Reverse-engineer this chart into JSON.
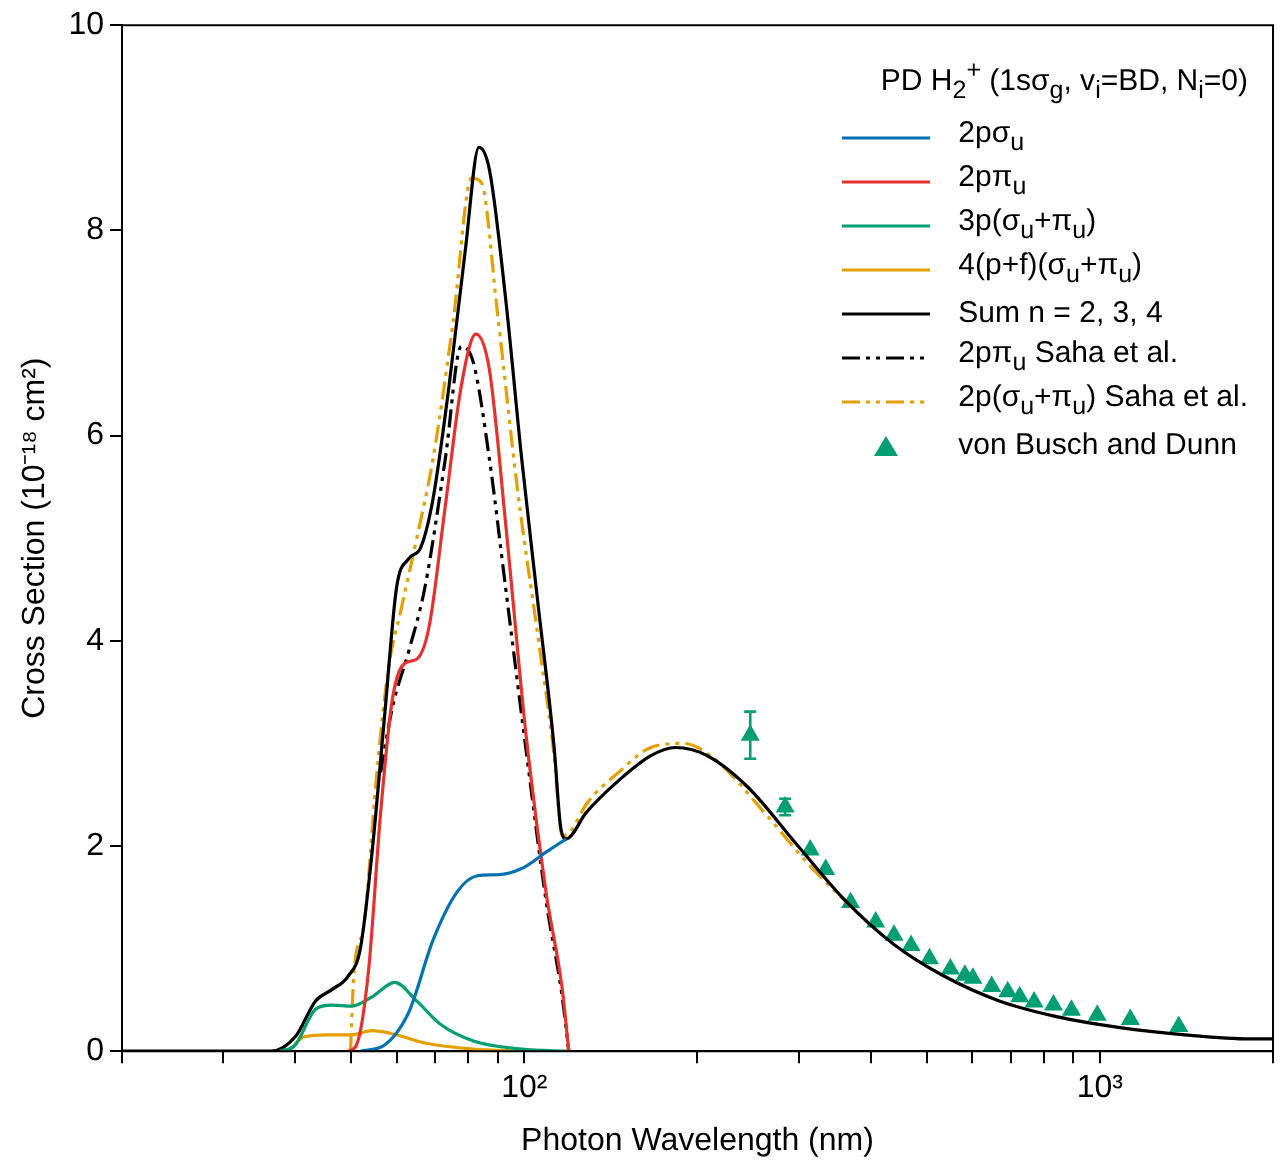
{
  "chart_data": {
    "type": "line",
    "xlabel": "Photon Wavelength (nm)",
    "ylabel": "Cross Section (10⁻¹⁸ cm²)",
    "legend": "top right",
    "legend_title": "PD H$_{2}$$^{+}$ (1sσ$_{g}$, v$_{i}$=BD, N$_{i}$=0)",
    "log": "x",
    "xlim": [
      20,
      2000
    ],
    "xticks": [
      {
        "value": 20,
        "label": null
      },
      {
        "value": 30,
        "label": null
      },
      {
        "value": 40,
        "label": null
      },
      {
        "value": 50,
        "label": null
      },
      {
        "value": 60,
        "label": null
      },
      {
        "value": 70,
        "label": null
      },
      {
        "value": 80,
        "label": null
      },
      {
        "value": 90,
        "label": null
      },
      {
        "value": 100,
        "label": "10²"
      },
      {
        "value": 200,
        "label": null
      },
      {
        "value": 300,
        "label": null
      },
      {
        "value": 400,
        "label": null
      },
      {
        "value": 500,
        "label": null
      },
      {
        "value": 600,
        "label": null
      },
      {
        "value": 700,
        "label": null
      },
      {
        "value": 800,
        "label": null
      },
      {
        "value": 900,
        "label": null
      },
      {
        "value": 1000,
        "label": "10³"
      },
      {
        "value": 2000,
        "label": null
      }
    ],
    "ylim": [
      0,
      10
    ],
    "yticks": [
      0,
      2,
      4,
      6,
      8,
      10
    ],
    "series": [
      {
        "name": "2pσ$_{u}$",
        "type": "line",
        "color": "#0072b2",
        "line_style": "solid",
        "marker": "none",
        "x": [
          51.9,
          57.2,
          63,
          69.4,
          76.4,
          82.9,
          89.9,
          99,
          109.1,
          118.3
        ],
        "values": [
          0,
          0.06,
          0.38,
          1.08,
          1.55,
          1.71,
          1.72,
          1.78,
          1.94,
          2.07
        ]
      },
      {
        "name": "2pπ$_{u}$",
        "type": "line",
        "color": "#e5322d",
        "line_style": "solid",
        "marker": "none",
        "x": [
          49.4,
          51.1,
          53.6,
          56.3,
          59,
          62,
          65,
          68.3,
          72.9,
          77.7,
          82.4,
          87,
          92.8,
          100.6,
          109.1,
          116.4,
          119.5
        ],
        "values": [
          0,
          0.06,
          0.77,
          2.33,
          3.43,
          3.78,
          3.82,
          4.13,
          5.31,
          6.48,
          6.99,
          6.64,
          5.15,
          3.11,
          1.55,
          0.61,
          0
        ]
      },
      {
        "name": "3p(σ$_{u}$+π$_{u}$)",
        "type": "line",
        "color": "#009e73",
        "line_style": "solid",
        "marker": "none",
        "x": [
          37.6,
          40,
          43.4,
          46.3,
          50.2,
          54.4,
          59.6,
          65,
          71.6,
          81.6,
          99,
          120
        ],
        "values": [
          0,
          0.06,
          0.41,
          0.45,
          0.44,
          0.53,
          0.67,
          0.49,
          0.26,
          0.1,
          0.02,
          0
        ]
      },
      {
        "name": "4(p+f)(σ$_{u}$+π$_{u}$)",
        "type": "line",
        "color": "#e69f00",
        "line_style": "solid",
        "marker": "none",
        "x": [
          39,
          41.4,
          45.6,
          50.2,
          54.4,
          59,
          67.2,
          81.6,
          99
        ],
        "values": [
          0,
          0.14,
          0.16,
          0.16,
          0.2,
          0.17,
          0.08,
          0.02,
          0
        ]
      },
      {
        "name": "Sum n = 2, 3, 4",
        "type": "line",
        "color": "#000000",
        "line_style": "solid",
        "marker": "none",
        "x": [
          20,
          36.3,
          40,
          43.4,
          46.3,
          49.4,
          51.9,
          54.4,
          57.2,
          60,
          63,
          66.1,
          69.4,
          74,
          79,
          83.4,
          87,
          92.8,
          99,
          105.6,
          112.7,
          115.7,
          118.3,
          128.3,
          146,
          166,
          183,
          208,
          245,
          297,
          361,
          439,
          533,
          669,
          837,
          1085,
          1406,
          1822,
          2000
        ],
        "values": [
          0,
          0,
          0.14,
          0.49,
          0.6,
          0.73,
          1,
          1.94,
          3.27,
          4.52,
          4.8,
          4.91,
          5.38,
          6.48,
          7.81,
          8.81,
          8.59,
          7.34,
          5.77,
          4.37,
          2.96,
          2.18,
          2.07,
          2.33,
          2.64,
          2.88,
          2.96,
          2.88,
          2.57,
          2.02,
          1.47,
          1.04,
          0.74,
          0.49,
          0.34,
          0.23,
          0.16,
          0.12,
          0.12
        ]
      },
      {
        "name": "2pπ$_{u}$ Saha et al.",
        "type": "line",
        "color": "#000000",
        "line_style": "dashed",
        "marker": "none",
        "x": [
          56.3,
          59,
          63,
          67.2,
          72.9,
          77.7,
          81.6,
          87,
          92.8,
          100.6,
          109.1,
          116.4,
          119.5
        ],
        "values": [
          2.72,
          3.35,
          3.9,
          4.52,
          5.77,
          6.87,
          6.71,
          5.77,
          4.52,
          2.96,
          1.47,
          0.53,
          0
        ]
      },
      {
        "name": "2p(σ$_{u}$+π$_{u}$) Saha et al.",
        "type": "line",
        "color": "#e69f00",
        "line_style": "dashed",
        "marker": "none",
        "x": [
          49.9,
          50.6,
          52.7,
          55.3,
          58.1,
          61,
          65,
          69.4,
          75.2,
          81,
          84.2,
          89.9,
          97.4,
          105.6,
          112.7,
          116.4,
          120.2,
          128.3,
          146,
          166,
          189,
          215,
          261,
          317,
          398
        ],
        "values": [
          0,
          0.77,
          1.24,
          2.64,
          3.74,
          4.29,
          4.99,
          5.77,
          7.1,
          8.51,
          8.47,
          7.18,
          5.46,
          4.05,
          2.88,
          2.1,
          2.14,
          2.41,
          2.72,
          2.96,
          3,
          2.84,
          2.33,
          1.78,
          1.24
        ]
      },
      {
        "name": "von Busch and Dunn",
        "type": "scatter",
        "color": "#009e73",
        "marker": "triangle",
        "x": [
          247,
          284,
          314,
          334,
          369,
          408,
          439,
          470,
          506,
          550,
          583,
          602,
          649,
          692,
          726,
          769,
          831,
          893,
          990,
          1130,
          1372
        ],
        "values": [
          3.08,
          2.38,
          1.96,
          1.77,
          1.45,
          1.26,
          1.13,
          1.03,
          0.9,
          0.8,
          0.74,
          0.71,
          0.63,
          0.58,
          0.53,
          0.48,
          0.45,
          0.4,
          0.35,
          0.31,
          0.24
        ],
        "errors": [
          0.23,
          0.08,
          null,
          null,
          null,
          null,
          null,
          null,
          null,
          null,
          null,
          null,
          null,
          null,
          null,
          null,
          null,
          null,
          null,
          null,
          null
        ]
      }
    ]
  }
}
